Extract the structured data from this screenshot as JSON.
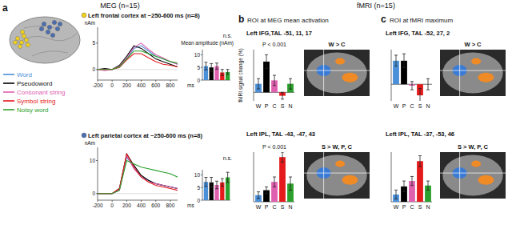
{
  "figure": {
    "meg_title": "MEG (n=15)",
    "fmri_title": "fMRI (n=15)",
    "panels": [
      {
        "label": "a"
      },
      {
        "label": "b",
        "title": "ROI at MEG mean activation"
      },
      {
        "label": "c",
        "title": "ROI at fMRI maximum"
      }
    ]
  },
  "chart_data": [
    {
      "type": "line",
      "title": "Left frontal cortex at ~250-600 ms (n=8)",
      "y_label": "nAm",
      "x_label": "ms",
      "legend": "left",
      "x": [
        -200,
        -100,
        0,
        100,
        200,
        300,
        400,
        500,
        600,
        700,
        800,
        900
      ],
      "xlim": [
        -200,
        900
      ],
      "xticks": [
        -200,
        0,
        200,
        400,
        600,
        800
      ],
      "ylim": [
        -2,
        8
      ],
      "yticks": [
        0,
        5
      ],
      "series": [
        {
          "name": "Word",
          "color": "#4a90d9",
          "values": [
            0,
            0,
            0,
            0.5,
            2,
            4,
            4.5,
            3.5,
            2.5,
            2,
            1.5,
            1
          ]
        },
        {
          "name": "Pseudoword",
          "color": "#000000",
          "values": [
            0,
            0.2,
            0,
            0.8,
            2.5,
            4.5,
            4,
            3,
            2,
            1.5,
            1,
            0.5
          ]
        },
        {
          "name": "Consonant string",
          "color": "#e060b0",
          "values": [
            0,
            -0.2,
            0,
            0.6,
            2.2,
            4.2,
            5,
            3.8,
            2.8,
            2.2,
            1.5,
            1
          ]
        },
        {
          "name": "Symbol string",
          "color": "#e41a1c",
          "values": [
            0,
            0,
            0,
            0.4,
            1.8,
            3,
            3,
            2.2,
            1.5,
            1,
            0.8,
            0.5
          ]
        },
        {
          "name": "Noisy word",
          "color": "#2ca02c",
          "values": [
            0,
            0,
            0,
            0.5,
            2,
            3.5,
            3.5,
            3,
            2.5,
            2,
            1.5,
            1.2
          ]
        }
      ]
    },
    {
      "type": "bar",
      "y_label": "Mean amplitude (nAm)",
      "annotation": "n.s.",
      "tick_labels": "y",
      "categories": [
        null,
        null,
        null,
        null,
        null
      ],
      "colors": [
        "#4a90d9",
        "#000000",
        "#e060b0",
        "#e41a1c",
        "#2ca02c"
      ],
      "values": [
        5.5,
        5,
        5.5,
        3,
        3.2
      ],
      "errors": [
        1.5,
        1.5,
        1.2,
        1.2,
        1
      ],
      "ylim": [
        0,
        12
      ],
      "yticks": [
        0,
        5,
        10
      ]
    },
    {
      "type": "line",
      "title": "Left parietal cortex at ~250-600 ms (n=8)",
      "y_label": "nAm",
      "x_label": "ms",
      "x": [
        -200,
        -100,
        0,
        100,
        200,
        300,
        400,
        500,
        600,
        700,
        800,
        900
      ],
      "xlim": [
        -200,
        900
      ],
      "xticks": [
        -200,
        0,
        200,
        400,
        600,
        800
      ],
      "ylim": [
        -2,
        14
      ],
      "yticks": [
        0,
        10
      ],
      "series": [
        {
          "color": "#4a90d9",
          "values": [
            0,
            0,
            0,
            1,
            11,
            8,
            5,
            4,
            3,
            2.5,
            2,
            1.5
          ]
        },
        {
          "color": "#000000",
          "values": [
            0,
            0,
            0,
            1.5,
            12,
            8.5,
            5.5,
            4,
            3,
            2.5,
            2,
            1.5
          ]
        },
        {
          "color": "#e060b0",
          "values": [
            0,
            0,
            0,
            1,
            11.5,
            7.5,
            5,
            3.5,
            3,
            2.5,
            2,
            1.5
          ]
        },
        {
          "color": "#e41a1c",
          "values": [
            0,
            0,
            0,
            1.5,
            12,
            8,
            5,
            3.5,
            2.5,
            2,
            1.5,
            1
          ]
        },
        {
          "color": "#2ca02c",
          "values": [
            0,
            0,
            0,
            1,
            10,
            9,
            8,
            7.5,
            7,
            6.5,
            6,
            5
          ]
        }
      ]
    },
    {
      "type": "bar",
      "annotation": "n.s.",
      "tick_labels": "y",
      "categories": [
        null,
        null,
        null,
        null,
        null
      ],
      "colors": [
        "#4a90d9",
        "#000000",
        "#e060b0",
        "#e41a1c",
        "#2ca02c"
      ],
      "values": [
        7.2,
        7,
        6,
        7,
        9
      ],
      "errors": [
        1.8,
        2,
        1.5,
        1.5,
        2
      ],
      "ylim": [
        0,
        12
      ],
      "yticks": [
        0,
        5,
        10
      ]
    },
    {
      "type": "bar",
      "title": "Left IFG,TAL -51, 11, 17",
      "annotation": "P < 0.001",
      "contrast": "W > C",
      "y_label": "fMRI signal change (%)",
      "tick_labels": "x",
      "categories": [
        "W",
        "P",
        "C",
        "S",
        "N"
      ],
      "colors": [
        "#4a90d9",
        "#000000",
        "#e060b0",
        "#e41a1c",
        "#2ca02c"
      ],
      "values": [
        0.05,
        0.18,
        0.07,
        -0.02,
        0.05
      ],
      "errors": [
        0.03,
        0.04,
        0.03,
        0.02,
        0.03
      ],
      "ylim": [
        -0.05,
        0.25
      ]
    },
    {
      "type": "bar",
      "title": "Left IPL, TAL -43, -47, 43",
      "annotation": "P < 0.001",
      "contrast": "S > W, P, C",
      "tick_labels": "x",
      "categories": [
        "W",
        "P",
        "C",
        "S",
        "N"
      ],
      "colors": [
        "#4a90d9",
        "#000000",
        "#e060b0",
        "#e41a1c",
        "#2ca02c"
      ],
      "values": [
        0.04,
        0.07,
        0.12,
        0.27,
        0.11
      ],
      "errors": [
        0.02,
        0.02,
        0.03,
        0.03,
        0.04
      ],
      "ylim": [
        0,
        0.3
      ]
    },
    {
      "type": "bar",
      "title": "Left IFG, TAL -52, 27, 2",
      "contrast": "W > C",
      "tick_labels": "x",
      "categories": [
        "W",
        "P",
        "C",
        "S",
        "N"
      ],
      "colors": [
        "#4a90d9",
        "#000000",
        "#e060b0",
        "#e41a1c",
        "#2ca02c"
      ],
      "values": [
        0.17,
        0.17,
        -0.01,
        -0.08,
        0
      ],
      "errors": [
        0.04,
        0.05,
        0.03,
        0.05,
        0.04
      ],
      "ylim": [
        -0.12,
        0.25
      ]
    },
    {
      "type": "bar",
      "title": "Left IPL, TAL -37, -53, 46",
      "contrast": "S > W, P, C",
      "tick_labels": "x",
      "categories": [
        "W",
        "P",
        "C",
        "S",
        "N"
      ],
      "colors": [
        "#4a90d9",
        "#000000",
        "#e060b0",
        "#e41a1c",
        "#2ca02c"
      ],
      "values": [
        0.08,
        0.17,
        0.23,
        0.45,
        0.18
      ],
      "errors": [
        0.05,
        0.06,
        0.05,
        0.06,
        0.05
      ],
      "ylim": [
        0,
        0.55
      ]
    }
  ]
}
